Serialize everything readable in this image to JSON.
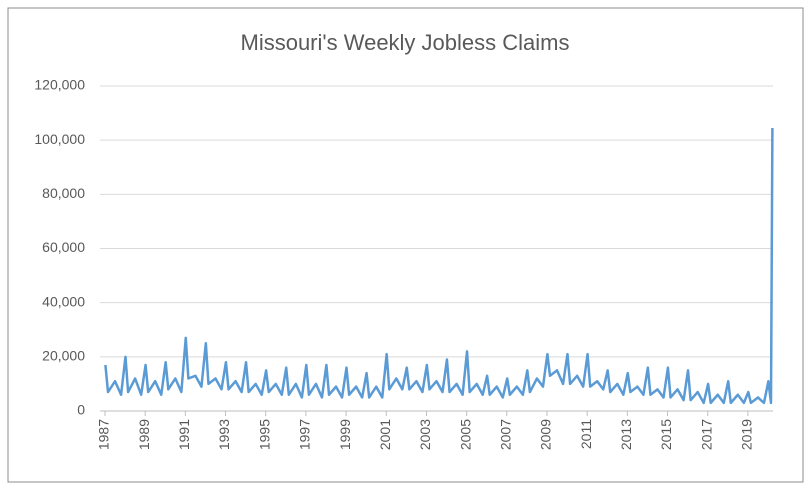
{
  "chart_data": {
    "type": "line",
    "title": "Missouri's Weekly Jobless Claims",
    "color": "#5b9bd5",
    "grid": true,
    "x": [
      1987.02,
      1987.15,
      1987.5,
      1987.8,
      1988.02,
      1988.15,
      1988.5,
      1988.8,
      1989.02,
      1989.15,
      1989.5,
      1989.8,
      1990.02,
      1990.15,
      1990.5,
      1990.8,
      1991.02,
      1991.15,
      1991.5,
      1991.8,
      1992.02,
      1992.15,
      1992.5,
      1992.8,
      1993.02,
      1993.15,
      1993.5,
      1993.8,
      1994.02,
      1994.15,
      1994.5,
      1994.8,
      1995.02,
      1995.15,
      1995.5,
      1995.8,
      1996.02,
      1996.15,
      1996.5,
      1996.8,
      1997.02,
      1997.15,
      1997.5,
      1997.8,
      1998.02,
      1998.15,
      1998.5,
      1998.8,
      1999.02,
      1999.15,
      1999.5,
      1999.8,
      2000.02,
      2000.15,
      2000.5,
      2000.8,
      2001.02,
      2001.15,
      2001.5,
      2001.8,
      2002.02,
      2002.15,
      2002.5,
      2002.8,
      2003.02,
      2003.15,
      2003.5,
      2003.8,
      2004.02,
      2004.15,
      2004.5,
      2004.8,
      2005.02,
      2005.15,
      2005.5,
      2005.8,
      2006.02,
      2006.15,
      2006.5,
      2006.8,
      2007.02,
      2007.15,
      2007.5,
      2007.8,
      2008.02,
      2008.15,
      2008.5,
      2008.8,
      2009.02,
      2009.15,
      2009.5,
      2009.8,
      2010.02,
      2010.15,
      2010.5,
      2010.8,
      2011.02,
      2011.15,
      2011.5,
      2011.8,
      2012.02,
      2012.15,
      2012.5,
      2012.8,
      2013.02,
      2013.15,
      2013.5,
      2013.8,
      2014.02,
      2014.15,
      2014.5,
      2014.8,
      2015.02,
      2015.15,
      2015.5,
      2015.8,
      2016.02,
      2016.15,
      2016.5,
      2016.8,
      2017.02,
      2017.15,
      2017.5,
      2017.8,
      2018.02,
      2018.15,
      2018.5,
      2018.8,
      2019.02,
      2019.15,
      2019.5,
      2019.8,
      2020.02,
      2020.15,
      2020.22
    ],
    "values": [
      17000,
      7000,
      11000,
      6000,
      20000,
      7000,
      12000,
      6000,
      17000,
      7000,
      11000,
      6000,
      18000,
      8000,
      12000,
      7000,
      27000,
      12000,
      13000,
      9000,
      25000,
      10000,
      12000,
      8000,
      18000,
      8000,
      11000,
      7000,
      18000,
      7000,
      10000,
      6000,
      15000,
      7000,
      10000,
      6000,
      16000,
      6000,
      10000,
      5000,
      17000,
      6000,
      10000,
      5000,
      17000,
      6000,
      9000,
      5000,
      16000,
      6000,
      9000,
      5000,
      14000,
      5000,
      9000,
      5000,
      21000,
      8000,
      12000,
      8000,
      16000,
      8000,
      11000,
      7000,
      17000,
      8000,
      11000,
      7000,
      19000,
      7000,
      10000,
      6000,
      22000,
      7000,
      10000,
      6000,
      13000,
      6000,
      9000,
      5000,
      12000,
      6000,
      9000,
      6000,
      15000,
      7000,
      12000,
      9000,
      21000,
      13000,
      15000,
      10000,
      21000,
      10000,
      13000,
      9000,
      21000,
      9000,
      11000,
      8000,
      15000,
      7000,
      10000,
      6000,
      14000,
      7000,
      9000,
      6000,
      16000,
      6000,
      8000,
      5000,
      16000,
      5000,
      8000,
      4000,
      15000,
      4000,
      7000,
      3000,
      10000,
      3000,
      6000,
      3000,
      11000,
      3000,
      6000,
      3000,
      7000,
      3000,
      5000,
      3000,
      11000,
      3000,
      104500
    ],
    "xlim": [
      1987,
      2020.25
    ],
    "xticks": [
      1987,
      1989,
      1991,
      1993,
      1995,
      1997,
      1999,
      2001,
      2003,
      2005,
      2007,
      2009,
      2011,
      2013,
      2015,
      2017,
      2019
    ],
    "ylim": [
      0,
      120000
    ],
    "yticks": [
      0,
      {
        "value": 20000,
        "label": "20,000"
      },
      {
        "value": 40000,
        "label": "40,000"
      },
      {
        "value": 60000,
        "label": "60,000"
      },
      {
        "value": 80000,
        "label": "80,000"
      },
      {
        "value": 100000,
        "label": "100,000"
      },
      {
        "value": 120000,
        "label": "120,000"
      }
    ]
  }
}
